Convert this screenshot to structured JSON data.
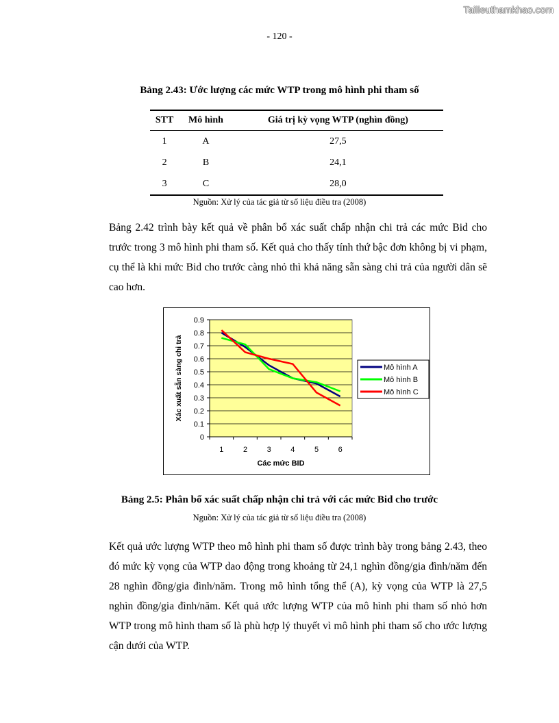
{
  "watermark": "Tailieuthamkhao.com",
  "page_number": "- 120 -",
  "table": {
    "caption": "Bảng 2.43: Ước lượng các mức WTP trong mô hình phi tham số",
    "headers": [
      "STT",
      "Mô hình",
      "Giá trị kỳ vọng WTP (nghìn đồng)"
    ],
    "rows": [
      [
        "1",
        "A",
        "27,5"
      ],
      [
        "2",
        "B",
        "24,1"
      ],
      [
        "3",
        "C",
        "28,0"
      ]
    ],
    "source": "Nguồn: Xử lý của tác giả từ số liệu điều tra (2008)"
  },
  "para1": "Bảng 2.42 trình bày kết quả về phân bổ xác suất chấp nhận chi trả các mức Bid cho trước trong 3 mô hình phi tham số. Kết quả cho thấy tính thứ bậc đơn không bị vi phạm, cụ thể là khi mức Bid cho trước càng nhỏ thì khả năng sẵn sàng chi trả của người dân sẽ cao hơn.",
  "chart_caption": "Bảng 2.5: Phân bổ xác suất chấp nhận chi trả với các mức Bid cho trước",
  "chart_source": "Nguồn: Xử lý của tác giả từ số liệu điều tra (2008)",
  "para2": "Kết quả ước lượng WTP theo mô hình phi tham số được trình bày trong bảng 2.43, theo đó mức kỳ vọng của WTP dao động trong khoảng từ 24,1 nghìn đồng/gia đình/năm đến 28 nghìn đồng/gia đình/năm. Trong mô hình tổng thể (A), kỳ vọng của WTP là 27,5 nghìn đồng/gia đình/năm. Kết quả ước lượng WTP của mô hình phi tham số nhỏ hơn WTP trong mô hình tham số là phù hợp lý thuyết vì mô hình phi tham số cho ước lượng cận dưới của WTP.",
  "chart_data": {
    "type": "line",
    "xlabel": "Các mức  BID",
    "ylabel": "Xác xuất sẵn sàng chi trả",
    "categories": [
      "1",
      "2",
      "3",
      "4",
      "5",
      "6"
    ],
    "ylim": [
      0,
      0.9
    ],
    "yticks": [
      "0",
      "0.1",
      "0.2",
      "0.3",
      "0.4",
      "0.5",
      "0.6",
      "0.7",
      "0.8",
      "0.9"
    ],
    "grid": true,
    "plot_background": "#FFFF99",
    "legend_position": "right",
    "series": [
      {
        "name": "Mô hình A",
        "color": "#000080",
        "values": [
          0.8,
          0.69,
          0.55,
          0.45,
          0.41,
          0.31
        ]
      },
      {
        "name": "Mô hình B",
        "color": "#00FF00",
        "values": [
          0.76,
          0.71,
          0.52,
          0.45,
          0.42,
          0.35
        ]
      },
      {
        "name": "Mô hình C",
        "color": "#FF0000",
        "values": [
          0.82,
          0.65,
          0.6,
          0.56,
          0.34,
          0.24
        ]
      }
    ]
  }
}
